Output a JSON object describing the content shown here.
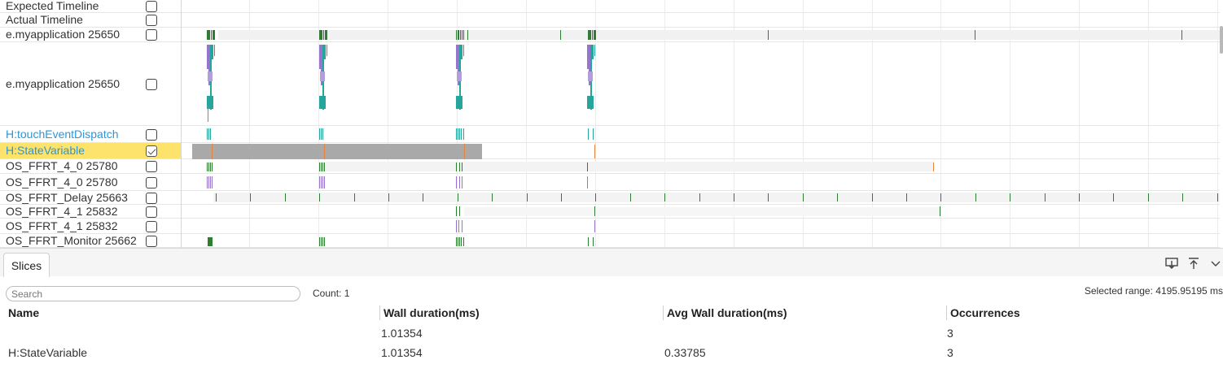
{
  "rows": [
    {
      "label": "Expected Timeline",
      "checked": false,
      "link": false,
      "highlight": false
    },
    {
      "label": "Actual Timeline",
      "checked": false,
      "link": false,
      "highlight": false
    },
    {
      "label": "e.myapplication 25650",
      "checked": false,
      "link": false,
      "highlight": false
    },
    {
      "label": "e.myapplication 25650",
      "checked": false,
      "link": false,
      "highlight": false
    },
    {
      "label": "H:touchEventDispatch",
      "checked": false,
      "link": true,
      "highlight": false
    },
    {
      "label": "H:StateVariable",
      "checked": true,
      "link": true,
      "highlight": true
    },
    {
      "label": "OS_FFRT_4_0 25780",
      "checked": false,
      "link": false,
      "highlight": false
    },
    {
      "label": "OS_FFRT_4_0 25780",
      "checked": false,
      "link": false,
      "highlight": false
    },
    {
      "label": "OS_FFRT_Delay 25663",
      "checked": false,
      "link": false,
      "highlight": false
    },
    {
      "label": "OS_FFRT_4_1 25832",
      "checked": false,
      "link": false,
      "highlight": false
    },
    {
      "label": "OS_FFRT_4_1 25832",
      "checked": false,
      "link": false,
      "highlight": false
    },
    {
      "label": "OS_FFRT_Monitor 25662",
      "checked": false,
      "link": false,
      "highlight": false
    }
  ],
  "colors": {
    "highlight_row": "#fde26b",
    "selection": "#a9a9a9",
    "green": "#2e7d32",
    "purple": "#9575cd",
    "teal": "#26a69a",
    "orange": "#e8833a",
    "link": "#2a96d8"
  },
  "panel": {
    "tab_label": "Slices",
    "search_placeholder": "Search",
    "count_text": "Count: 1",
    "selected_range": "Selected range: 4195.95195 ms",
    "icons": [
      "download-icon",
      "pin-to-top-icon",
      "chevron-down-icon"
    ]
  },
  "table": {
    "columns": [
      "Name",
      "Wall duration(ms)",
      "Avg Wall duration(ms)",
      "Occurrences"
    ],
    "rows": [
      {
        "name": "",
        "wall": "1.01354",
        "avg": "",
        "occ": "3"
      },
      {
        "name": "H:StateVariable",
        "wall": "1.01354",
        "avg": "0.33785",
        "occ": "3"
      }
    ]
  }
}
